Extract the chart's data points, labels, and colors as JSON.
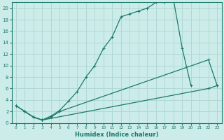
{
  "xlabel": "Humidex (Indice chaleur)",
  "background_color": "#ccecea",
  "grid_color": "#b0d8d4",
  "line_color": "#1a7a6a",
  "xlim": [
    -0.5,
    23.5
  ],
  "ylim": [
    0,
    21
  ],
  "xticks": [
    0,
    1,
    2,
    3,
    4,
    5,
    6,
    7,
    8,
    9,
    10,
    11,
    12,
    13,
    14,
    15,
    16,
    17,
    18,
    19,
    20,
    21,
    22,
    23
  ],
  "yticks": [
    0,
    2,
    4,
    6,
    8,
    10,
    12,
    14,
    16,
    18,
    20
  ],
  "line1": {
    "x": [
      0,
      1,
      2,
      3,
      4,
      5,
      6,
      7,
      8,
      9,
      10,
      11,
      12,
      13,
      14,
      15,
      16,
      17,
      18,
      19,
      20
    ],
    "y": [
      3,
      2,
      1,
      0.5,
      1.2,
      2.2,
      3.8,
      5.5,
      8.0,
      10.0,
      13.0,
      15.0,
      18.5,
      19.0,
      19.5,
      20.0,
      21.0,
      21.0,
      21.5,
      13.0,
      6.5
    ]
  },
  "line2": {
    "x": [
      1,
      2,
      3,
      4,
      5,
      22,
      23
    ],
    "y": [
      2,
      1,
      0.5,
      1.0,
      2.0,
      11.0,
      6.5
    ]
  },
  "line3": {
    "x": [
      0,
      1,
      2,
      3,
      22,
      23
    ],
    "y": [
      3,
      2,
      1,
      0.5,
      6.0,
      6.5
    ]
  }
}
